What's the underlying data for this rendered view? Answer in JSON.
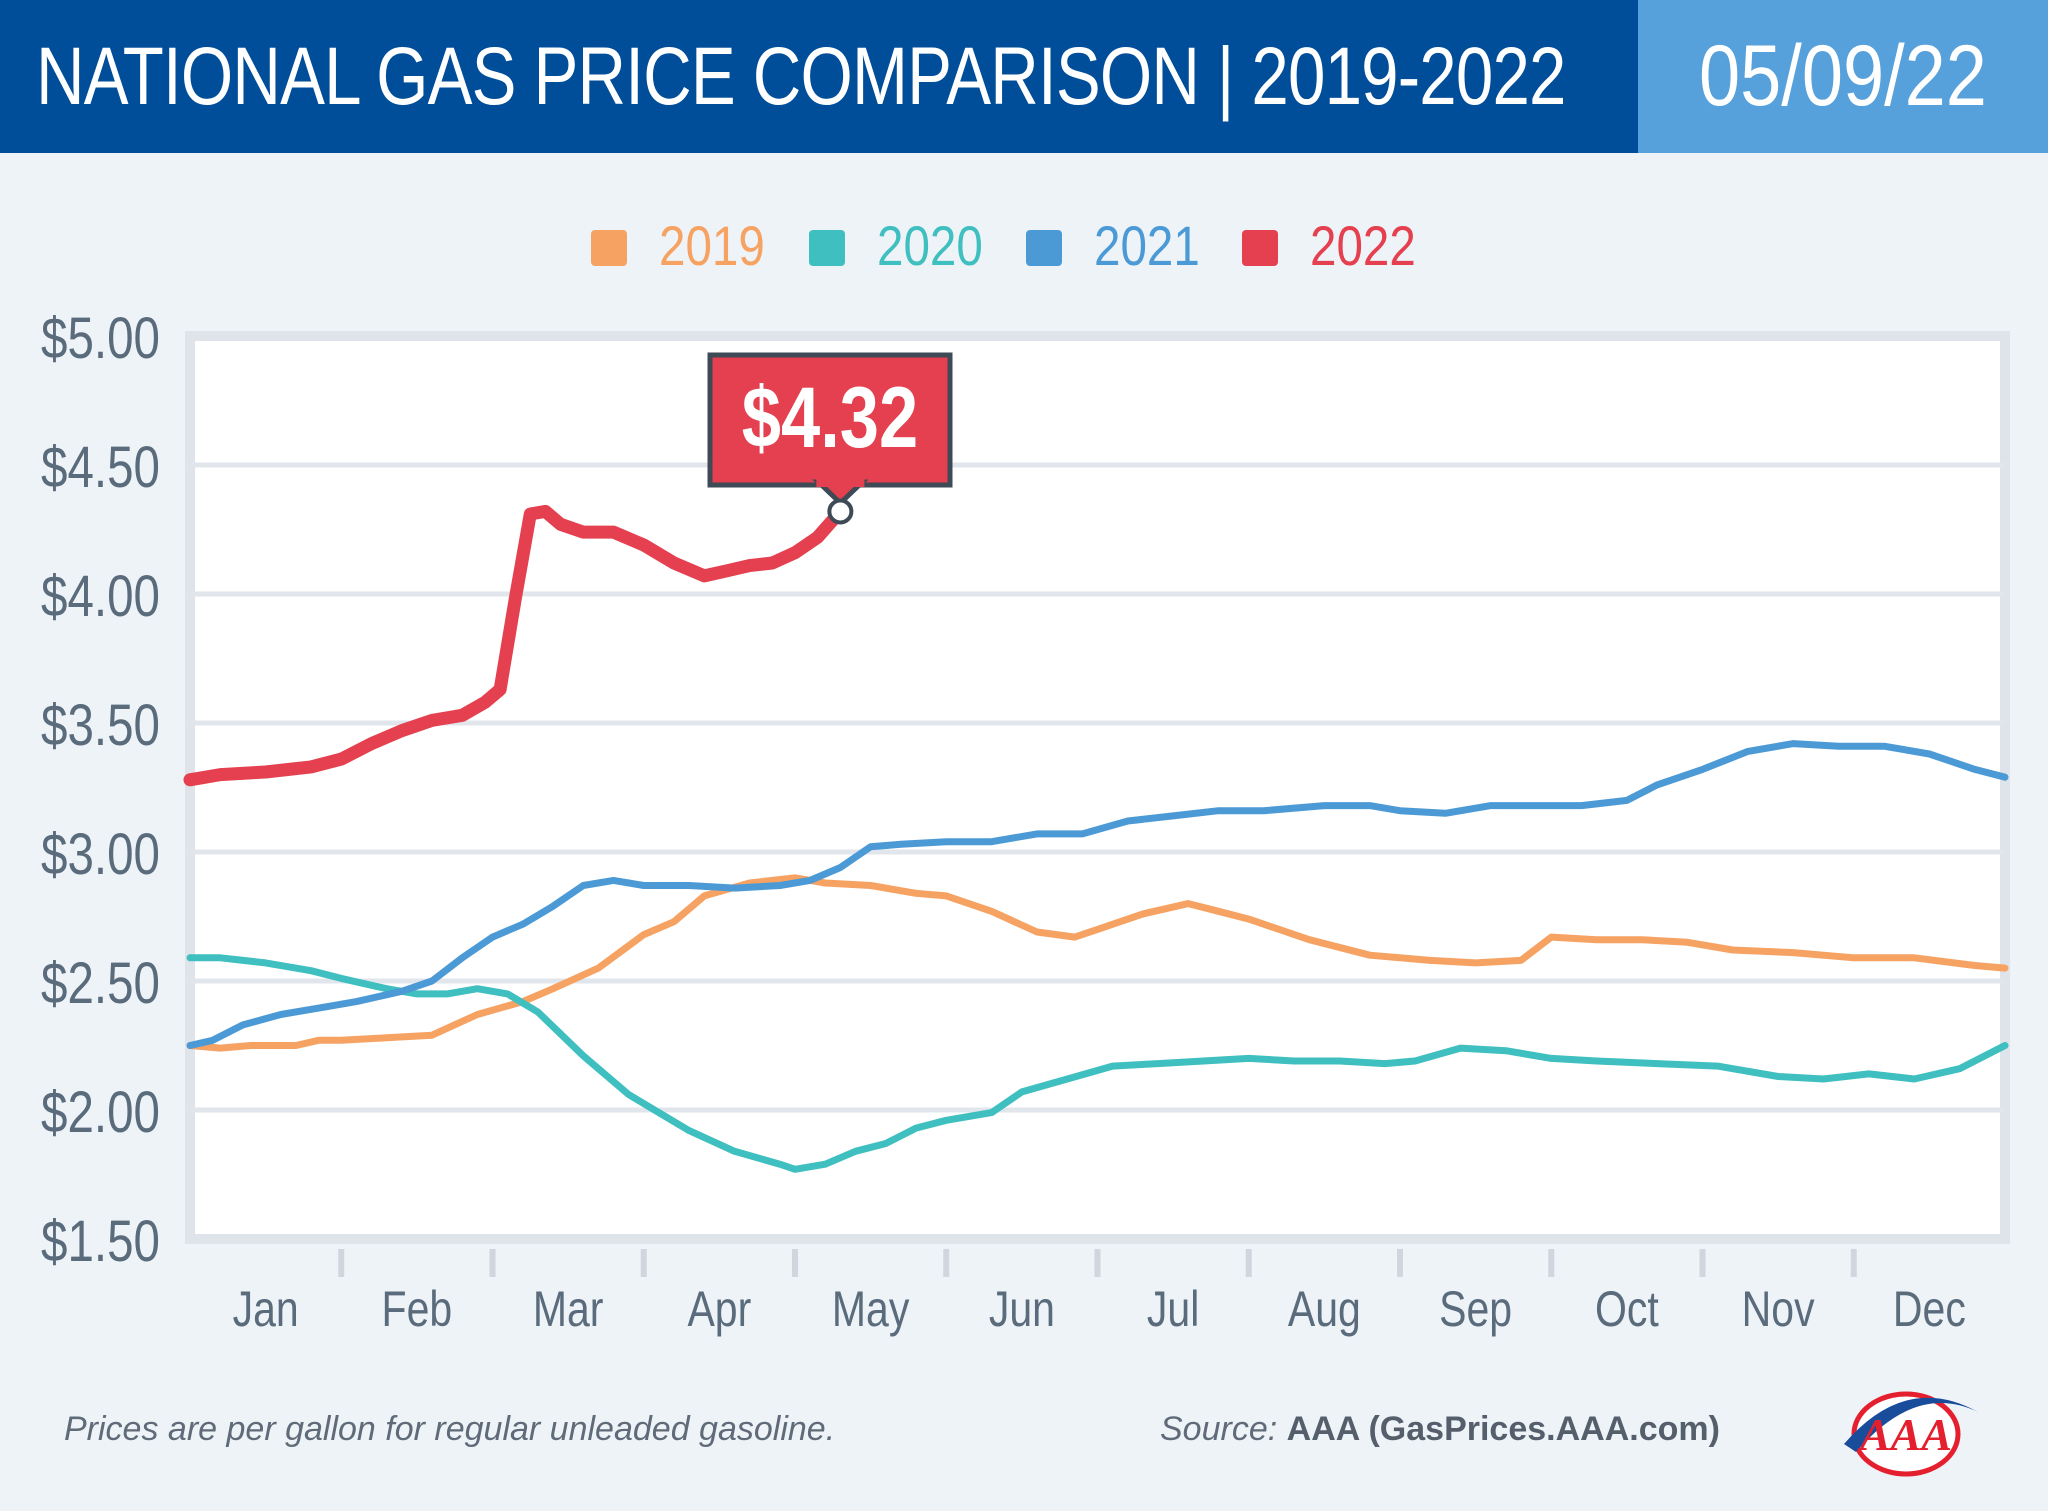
{
  "header": {
    "title": "NATIONAL GAS PRICE COMPARISON | 2019-2022",
    "date": "05/09/22"
  },
  "colors": {
    "header_bg": "#004d99",
    "date_bg": "#56a0db",
    "y2019": "#f6a263",
    "y2020": "#3fbfbf",
    "y2021": "#4b9ad6",
    "y2022": "#e4404f",
    "axis_text": "#5a6b7c",
    "grid": "#e1e6ec"
  },
  "footer": {
    "note": "Prices are per gallon for regular unleaded gasoline.",
    "source_label": "Source:",
    "source_value": "AAA (GasPrices.AAA.com)"
  },
  "logo": {
    "name": "aaa-logo",
    "text": "AAA"
  },
  "chart_data": {
    "type": "line",
    "title": "NATIONAL GAS PRICE COMPARISON | 2019-2022",
    "xlabel": "",
    "ylabel": "",
    "ylim": [
      1.5,
      5.0
    ],
    "xlim": [
      0,
      12
    ],
    "yticks": [
      5.0,
      4.5,
      4.0,
      3.5,
      3.0,
      2.5,
      2.0,
      1.5
    ],
    "ytick_labels": [
      "$5.00",
      "$4.50",
      "$4.00",
      "$3.50",
      "$3.00",
      "$2.50",
      "$2.00",
      "$1.50"
    ],
    "categories": [
      "Jan",
      "Feb",
      "Mar",
      "Apr",
      "May",
      "Jun",
      "Jul",
      "Aug",
      "Sep",
      "Oct",
      "Nov",
      "Dec"
    ],
    "grid": true,
    "legend_position": "top-center",
    "callout": {
      "label": "$4.32",
      "series": "2022",
      "x": 4.3,
      "y": 4.32
    },
    "series": [
      {
        "name": "2019",
        "color_key": "y2019",
        "x": [
          0,
          0.2,
          0.4,
          0.7,
          0.85,
          1.0,
          1.3,
          1.6,
          1.9,
          2.2,
          2.4,
          2.7,
          3.0,
          3.2,
          3.4,
          3.7,
          4.0,
          4.2,
          4.5,
          4.8,
          5.0,
          5.3,
          5.6,
          5.85,
          6.0,
          6.3,
          6.6,
          6.8,
          7.0,
          7.4,
          7.8,
          8.2,
          8.5,
          8.8,
          9.0,
          9.3,
          9.6,
          9.9,
          10.2,
          10.6,
          11.0,
          11.4,
          11.8,
          12.0
        ],
        "values": [
          2.25,
          2.24,
          2.25,
          2.25,
          2.27,
          2.27,
          2.28,
          2.29,
          2.37,
          2.42,
          2.47,
          2.55,
          2.68,
          2.73,
          2.83,
          2.88,
          2.9,
          2.88,
          2.87,
          2.84,
          2.83,
          2.77,
          2.69,
          2.67,
          2.7,
          2.76,
          2.8,
          2.77,
          2.74,
          2.66,
          2.6,
          2.58,
          2.57,
          2.58,
          2.67,
          2.66,
          2.66,
          2.65,
          2.62,
          2.61,
          2.59,
          2.59,
          2.56,
          2.55
        ]
      },
      {
        "name": "2020",
        "color_key": "y2020",
        "x": [
          0,
          0.2,
          0.5,
          0.8,
          1.0,
          1.3,
          1.5,
          1.7,
          1.9,
          2.1,
          2.3,
          2.6,
          2.9,
          3.1,
          3.3,
          3.6,
          3.9,
          4.0,
          4.2,
          4.4,
          4.6,
          4.8,
          5.0,
          5.3,
          5.5,
          5.8,
          6.1,
          6.4,
          6.7,
          7.0,
          7.3,
          7.6,
          7.9,
          8.1,
          8.4,
          8.7,
          9.0,
          9.3,
          9.7,
          10.1,
          10.5,
          10.8,
          11.1,
          11.4,
          11.7,
          12.0
        ],
        "values": [
          2.59,
          2.59,
          2.57,
          2.54,
          2.51,
          2.47,
          2.45,
          2.45,
          2.47,
          2.45,
          2.38,
          2.21,
          2.06,
          1.99,
          1.92,
          1.84,
          1.79,
          1.77,
          1.79,
          1.84,
          1.87,
          1.93,
          1.96,
          1.99,
          2.07,
          2.12,
          2.17,
          2.18,
          2.19,
          2.2,
          2.19,
          2.19,
          2.18,
          2.19,
          2.24,
          2.23,
          2.2,
          2.19,
          2.18,
          2.17,
          2.13,
          2.12,
          2.14,
          2.12,
          2.16,
          2.25
        ]
      },
      {
        "name": "2021",
        "color_key": "y2021",
        "x": [
          0,
          0.15,
          0.35,
          0.6,
          0.9,
          1.1,
          1.4,
          1.6,
          1.8,
          2.0,
          2.2,
          2.4,
          2.6,
          2.8,
          3.0,
          3.3,
          3.6,
          3.9,
          4.1,
          4.3,
          4.5,
          4.7,
          5.0,
          5.3,
          5.6,
          5.9,
          6.2,
          6.5,
          6.8,
          7.1,
          7.5,
          7.8,
          8.0,
          8.3,
          8.6,
          8.9,
          9.2,
          9.5,
          9.7,
          10.0,
          10.3,
          10.6,
          10.9,
          11.2,
          11.5,
          11.8,
          12.0
        ],
        "values": [
          2.25,
          2.27,
          2.33,
          2.37,
          2.4,
          2.42,
          2.46,
          2.5,
          2.59,
          2.67,
          2.72,
          2.79,
          2.87,
          2.89,
          2.87,
          2.87,
          2.86,
          2.87,
          2.89,
          2.94,
          3.02,
          3.03,
          3.04,
          3.04,
          3.07,
          3.07,
          3.12,
          3.14,
          3.16,
          3.16,
          3.18,
          3.18,
          3.16,
          3.15,
          3.18,
          3.18,
          3.18,
          3.2,
          3.26,
          3.32,
          3.39,
          3.42,
          3.41,
          3.41,
          3.38,
          3.32,
          3.29
        ]
      },
      {
        "name": "2022",
        "color_key": "y2022",
        "x": [
          0,
          0.2,
          0.5,
          0.8,
          1.0,
          1.2,
          1.4,
          1.6,
          1.8,
          1.95,
          2.05,
          2.15,
          2.25,
          2.35,
          2.45,
          2.6,
          2.8,
          3.0,
          3.2,
          3.4,
          3.55,
          3.7,
          3.85,
          4.0,
          4.15,
          4.3
        ],
        "values": [
          3.28,
          3.3,
          3.31,
          3.33,
          3.36,
          3.42,
          3.47,
          3.51,
          3.53,
          3.58,
          3.63,
          3.98,
          4.31,
          4.32,
          4.27,
          4.24,
          4.24,
          4.19,
          4.12,
          4.07,
          4.09,
          4.11,
          4.12,
          4.16,
          4.22,
          4.32
        ]
      }
    ]
  }
}
